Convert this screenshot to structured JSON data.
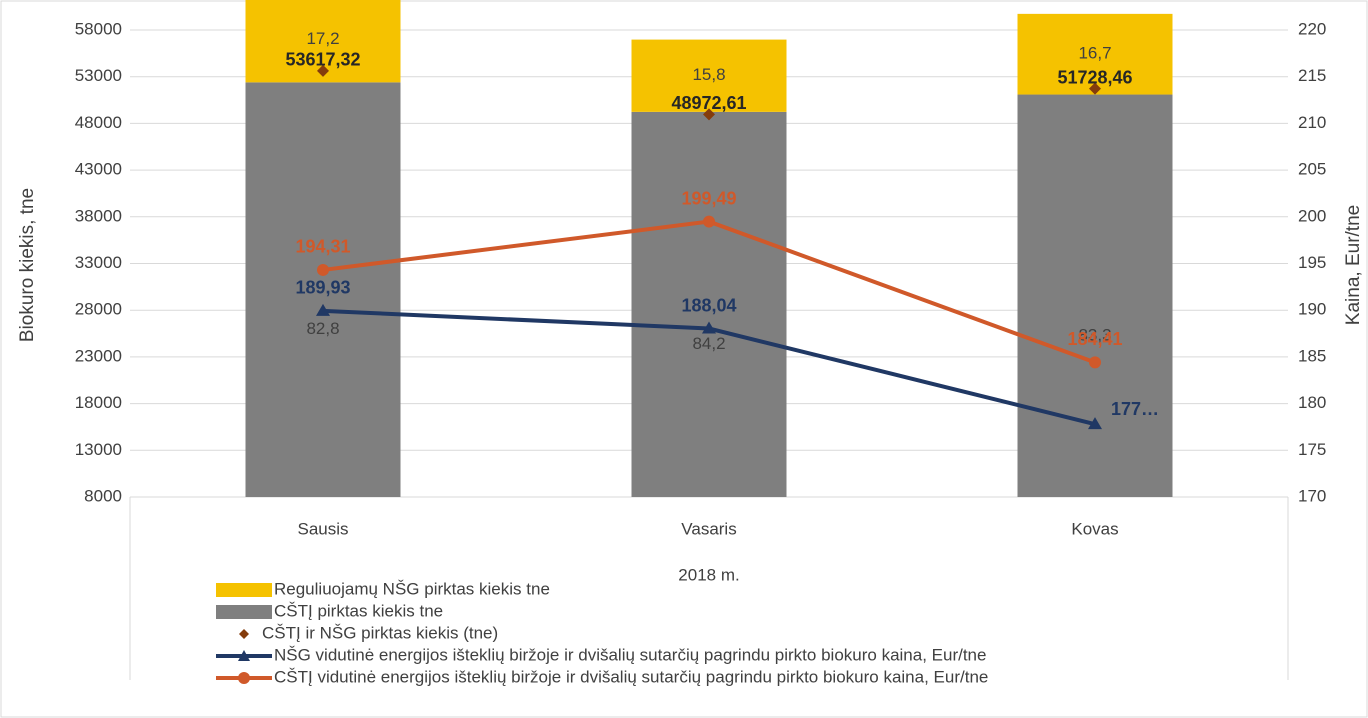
{
  "chart_data": {
    "type": "bar",
    "x_label": "2018 m.",
    "y_label": "Biokuro kiekis, tne",
    "y2_label": "Kaina, Eur/tne",
    "categories": [
      "Sausis",
      "Vasaris",
      "Kovas"
    ],
    "ylim": [
      8000,
      58000
    ],
    "yticks": [
      8000,
      13000,
      18000,
      23000,
      28000,
      33000,
      38000,
      43000,
      48000,
      53000,
      58000
    ],
    "y2lim": [
      170,
      220
    ],
    "y2ticks": [
      170,
      175,
      180,
      185,
      190,
      195,
      200,
      205,
      210,
      215,
      220
    ],
    "legend": "bottom-left",
    "series": [
      {
        "name": "Reguliuojamų NŠG pirktas kiekis tne",
        "kind": "bar",
        "color": "#f5c200",
        "values": [
          9222,
          7738,
          8638
        ],
        "labels": [
          "17,2",
          "15,8",
          "16,7"
        ]
      },
      {
        "name": "CŠTĮ pirktas kiekis tne",
        "kind": "bar",
        "color": "#7f7f7f",
        "values": [
          44395,
          41235,
          43090
        ],
        "labels": [
          "82,8",
          "84,2",
          "83,3"
        ]
      },
      {
        "name": "CŠTĮ ir NŠG pirktas kiekis (tne)",
        "kind": "scatter",
        "color": "#843c0c",
        "values": [
          53617.32,
          48972.61,
          51728.46
        ],
        "value_labels": [
          "53617,32",
          "48972,61",
          "51728,46"
        ]
      },
      {
        "name": "NŠG  vidutinė energijos išteklių biržoje ir dvišalių sutarčių pagrindu pirkto biokuro kaina, Eur/tne",
        "kind": "line",
        "marker": "triangle",
        "axis": "y2",
        "color": "#203864",
        "values": [
          189.93,
          188.04,
          177.8
        ],
        "value_labels": [
          "189,93",
          "188,04",
          "177…"
        ]
      },
      {
        "name": "CŠTĮ  vidutinė energijos išteklių biržoje ir dvišalių sutarčių pagrindu pirkto biokuro kaina, Eur/tne",
        "kind": "line",
        "marker": "circle",
        "axis": "y2",
        "color": "#d0592a",
        "values": [
          194.31,
          199.49,
          184.41
        ],
        "value_labels": [
          "194,31",
          "199,49",
          "184,41"
        ]
      }
    ]
  }
}
